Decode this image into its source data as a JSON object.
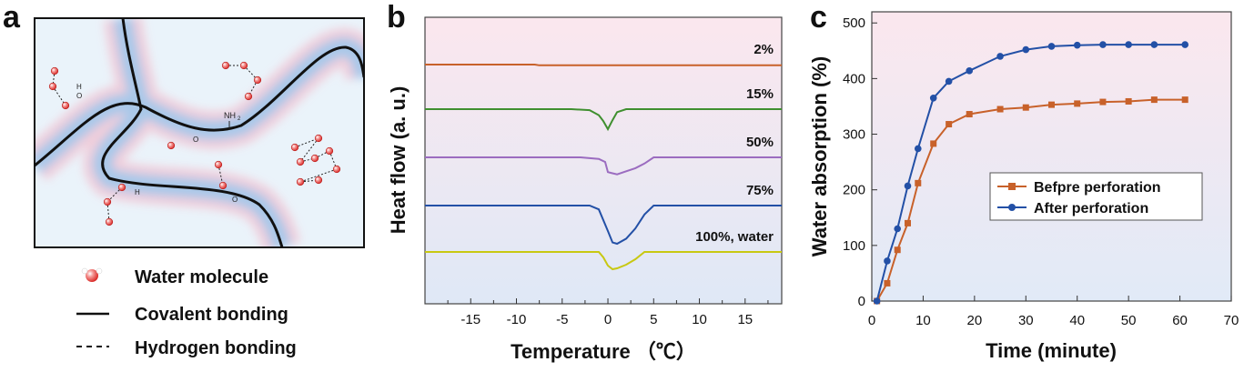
{
  "panels": {
    "a": {
      "letter": "a",
      "nh_label": "NH",
      "nh_sub": "2",
      "ho_label": "H",
      "o_label": "O",
      "legend": [
        {
          "key": "water",
          "label": "Water molecule"
        },
        {
          "key": "covalent",
          "label": "Covalent bonding"
        },
        {
          "key": "hydrogen",
          "label": "Hydrogen bonding"
        }
      ]
    },
    "b": {
      "letter": "b"
    },
    "c": {
      "letter": "c"
    }
  },
  "colors": {
    "orange": "#c8612a",
    "green": "#3f8f2f",
    "purple": "#9b6cc0",
    "blue": "#2350a6",
    "yellow": "#c8c812",
    "water_red": "#e8312f",
    "dsc_bg_top": "#fbe7ee",
    "dsc_bg_bottom": "#dfe8f6"
  },
  "chart_data": [
    {
      "type": "line",
      "panel": "b",
      "xlabel": "Temperature （℃）",
      "ylabel": "Heat flow (a. u.)",
      "xlim": [
        -20,
        19
      ],
      "xticks": [
        -15,
        -10,
        -5,
        0,
        5,
        10,
        15
      ],
      "series": [
        {
          "name": "2%",
          "color": "orange",
          "baseline_offset": 0,
          "x": [
            -20,
            -8,
            -7.5,
            19
          ],
          "y": [
            0,
            0,
            -0.06,
            -0.06
          ]
        },
        {
          "name": "15%",
          "color": "green",
          "baseline_offset": 1,
          "x": [
            -20,
            -4,
            -2,
            -1,
            -0.5,
            0,
            0.5,
            1,
            2,
            3,
            19
          ],
          "y": [
            0,
            0,
            -0.05,
            -0.3,
            -0.6,
            -1.0,
            -0.55,
            -0.15,
            0,
            0,
            0
          ]
        },
        {
          "name": "50%",
          "color": "purple",
          "baseline_offset": 2,
          "x": [
            -20,
            -3,
            -1,
            -0.3,
            0,
            0.3,
            1,
            2,
            3,
            4,
            5,
            19
          ],
          "y": [
            0,
            0,
            -0.1,
            -0.3,
            -0.95,
            -1.0,
            -1.1,
            -0.9,
            -0.7,
            -0.4,
            0,
            0
          ]
        },
        {
          "name": "75%",
          "color": "blue",
          "baseline_offset": 3,
          "x": [
            -20,
            -2,
            -1,
            0,
            0.5,
            1,
            2,
            3,
            4,
            5,
            19
          ],
          "y": [
            0,
            0,
            -0.15,
            -1.0,
            -1.45,
            -1.5,
            -1.3,
            -0.9,
            -0.35,
            0,
            0
          ]
        },
        {
          "name": "100%, water",
          "color": "yellow",
          "baseline_offset": 4,
          "x": [
            -20,
            -1,
            -0.5,
            0,
            0.5,
            1,
            2,
            3,
            4,
            19
          ],
          "y": [
            0,
            0,
            -0.3,
            -0.75,
            -0.95,
            -0.9,
            -0.7,
            -0.4,
            0,
            0
          ]
        }
      ]
    },
    {
      "type": "line",
      "panel": "c",
      "xlabel": "Time (minute)",
      "ylabel": "Water absorption (%)",
      "xlim": [
        0,
        70
      ],
      "ylim": [
        0,
        520
      ],
      "xticks": [
        0,
        10,
        20,
        30,
        40,
        50,
        60,
        70
      ],
      "yticks": [
        0,
        100,
        200,
        300,
        400,
        500
      ],
      "legend_position": "right",
      "series": [
        {
          "name": "Befpre perforation",
          "color": "orange",
          "marker": "square",
          "x": [
            1,
            3,
            5,
            7,
            9,
            12,
            15,
            19,
            25,
            30,
            35,
            40,
            45,
            50,
            55,
            61
          ],
          "y": [
            0,
            32,
            92,
            140,
            212,
            283,
            318,
            336,
            345,
            348,
            353,
            355,
            358,
            359,
            362,
            362
          ]
        },
        {
          "name": "After perforation",
          "color": "blue",
          "marker": "circle",
          "x": [
            1,
            3,
            5,
            7,
            9,
            12,
            15,
            19,
            25,
            30,
            35,
            40,
            45,
            50,
            55,
            61
          ],
          "y": [
            0,
            72,
            130,
            207,
            274,
            365,
            395,
            414,
            440,
            452,
            458,
            460,
            461,
            461,
            461,
            461
          ]
        }
      ]
    }
  ]
}
